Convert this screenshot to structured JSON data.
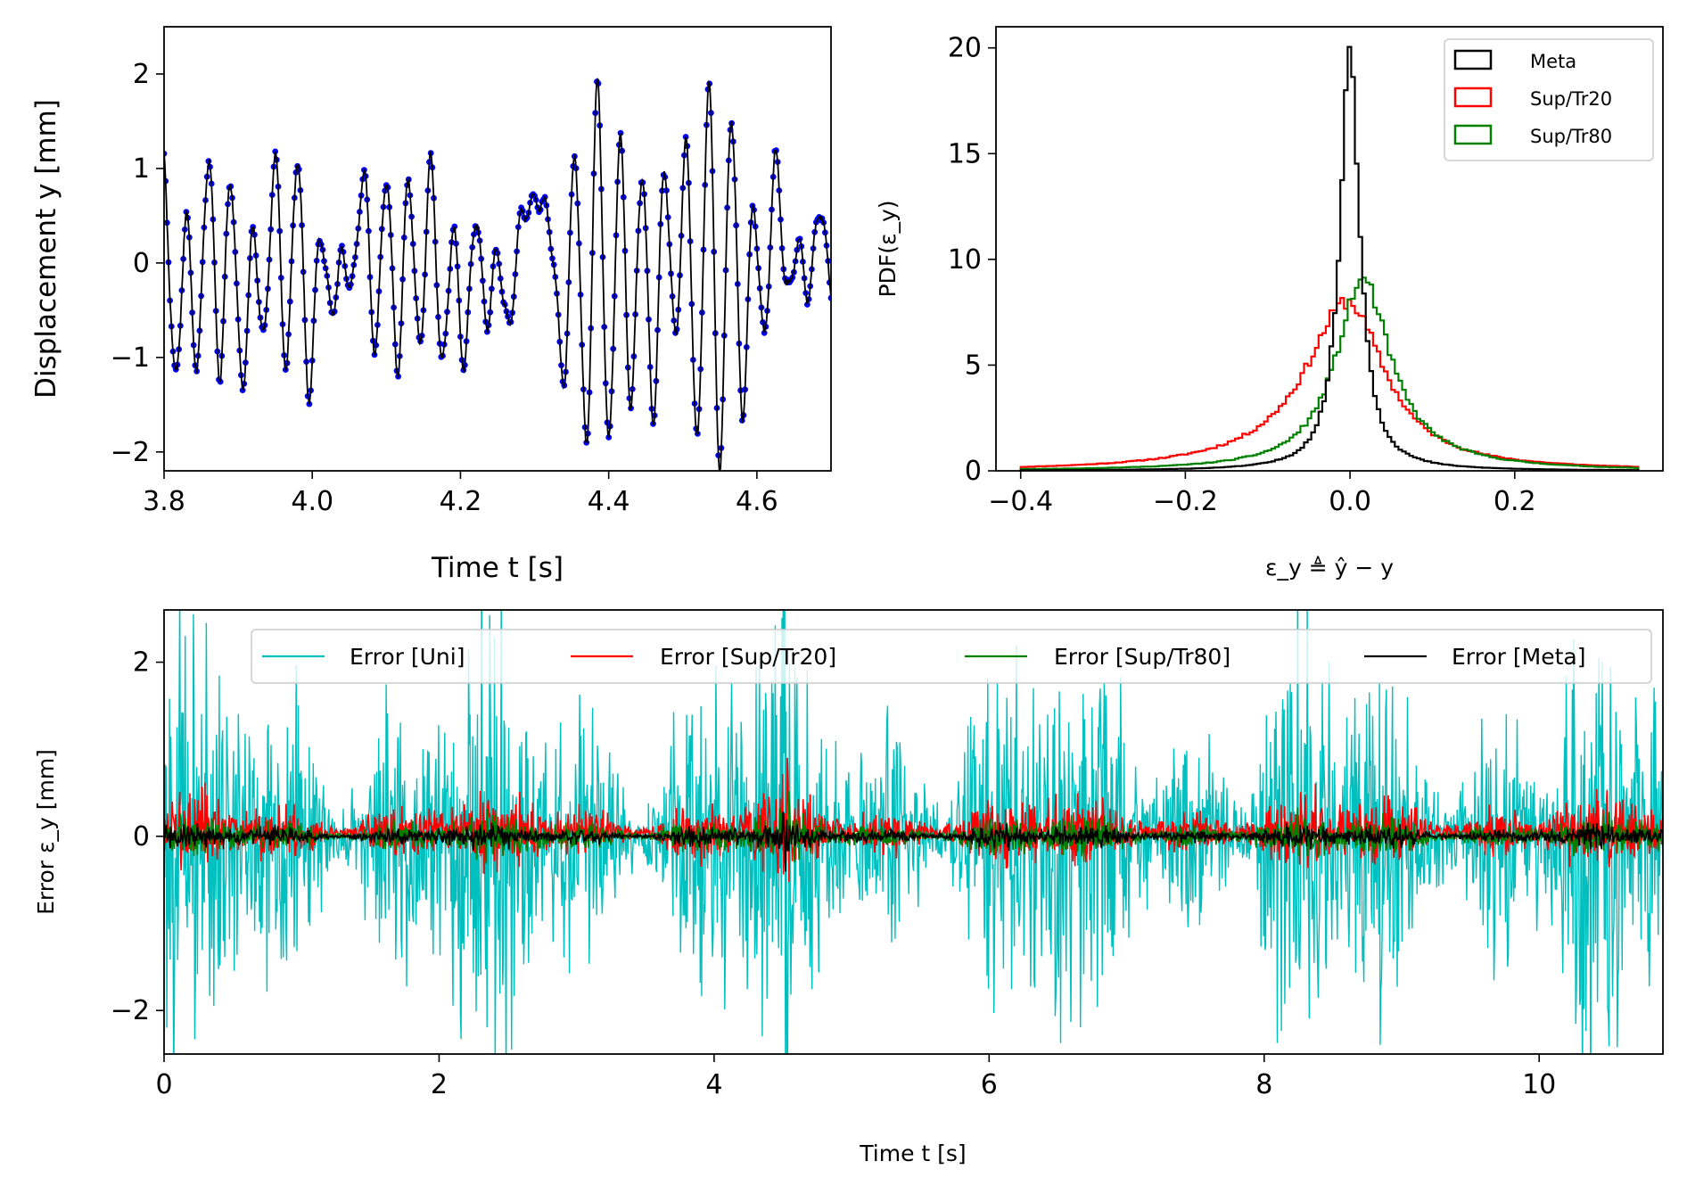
{
  "chart_data": [
    {
      "id": "displacement",
      "type": "line",
      "xlabel": "Time t [s]",
      "ylabel": "Displacement y [mm]",
      "xlim": [
        3.8,
        4.7
      ],
      "ylim": [
        -2.2,
        2.5
      ],
      "xticks": [
        "3.8",
        "4.0",
        "4.2",
        "4.4",
        "4.6"
      ],
      "xtick_values": [
        3.8,
        4.0,
        4.2,
        4.4,
        4.6
      ],
      "yticks": [
        "−2",
        "−1",
        "0",
        "1",
        "2"
      ],
      "ytick_values": [
        -2,
        -1,
        0,
        1,
        2
      ],
      "grid": false,
      "series": [
        {
          "role": "measured samples",
          "style": "markers",
          "color": "#0000ff"
        },
        {
          "role": "prediction",
          "style": "line",
          "color": "#000000"
        }
      ],
      "x": [
        3.8,
        3.815,
        3.83,
        3.845,
        3.86,
        3.875,
        3.89,
        3.905,
        3.92,
        3.935,
        3.95,
        3.965,
        3.98,
        3.995,
        4.01,
        4.025,
        4.04,
        4.055,
        4.07,
        4.085,
        4.1,
        4.115,
        4.13,
        4.145,
        4.16,
        4.175,
        4.19,
        4.205,
        4.22,
        4.235,
        4.25,
        4.265,
        4.28,
        4.295,
        4.31,
        4.325,
        4.34,
        4.355,
        4.37,
        4.385,
        4.4,
        4.415,
        4.43,
        4.445,
        4.46,
        4.475,
        4.49,
        4.505,
        4.52,
        4.535,
        4.55,
        4.565,
        4.58,
        4.595,
        4.61,
        4.625,
        4.64,
        4.655,
        4.67,
        4.685,
        4.7
      ],
      "values": [
        1.1,
        -1.25,
        0.45,
        -1.1,
        1.15,
        -1.15,
        0.9,
        -1.3,
        0.3,
        -0.8,
        1.1,
        -1.1,
        1.15,
        -1.35,
        0.3,
        -0.5,
        0.05,
        -0.2,
        0.95,
        -0.9,
        0.95,
        -1.1,
        0.9,
        -0.9,
        1.05,
        -1.1,
        0.35,
        -1.05,
        0.5,
        -0.6,
        0.1,
        -0.7,
        0.4,
        0.6,
        0.65,
        0.1,
        -1.2,
        1.15,
        -1.95,
        1.85,
        -1.95,
        1.3,
        -1.5,
        1.0,
        -1.6,
        1.0,
        -0.8,
        1.2,
        -1.9,
        1.9,
        -2.15,
        1.6,
        -1.55,
        0.6,
        -0.8,
        1.1,
        -0.3,
        0.2,
        -0.3,
        0.6,
        -0.3
      ]
    },
    {
      "id": "pdf",
      "type": "histogram",
      "xlabel": "ε_y ≜ ŷ − y",
      "ylabel": "PDF(ε_y)",
      "xlim": [
        -0.43,
        0.38
      ],
      "ylim": [
        0,
        21
      ],
      "xticks": [
        "−0.4",
        "−0.2",
        "0.0",
        "0.2"
      ],
      "xtick_values": [
        -0.4,
        -0.2,
        0.0,
        0.2
      ],
      "yticks": [
        "0",
        "5",
        "10",
        "15",
        "20"
      ],
      "ytick_values": [
        0,
        5,
        10,
        15,
        20
      ],
      "grid": false,
      "legend_position": "top-right",
      "series": [
        {
          "name": "Meta",
          "color": "#000000",
          "center": 0.0,
          "peak": 20.1,
          "scale": 0.018
        },
        {
          "name": "Sup/Tr20",
          "color": "#ff0000",
          "center": -0.003,
          "peak": 8.0,
          "scale": 0.06
        },
        {
          "name": "Sup/Tr80",
          "color": "#008000",
          "center": 0.015,
          "peak": 9.0,
          "scale": 0.045
        }
      ]
    },
    {
      "id": "error",
      "type": "line",
      "xlabel": "Time t [s]",
      "ylabel": "Error ε_y [mm]",
      "xlim": [
        0,
        10.9
      ],
      "ylim": [
        -2.5,
        2.6
      ],
      "xticks": [
        "0",
        "2",
        "4",
        "6",
        "8",
        "10"
      ],
      "xtick_values": [
        0,
        2,
        4,
        6,
        8,
        10
      ],
      "yticks": [
        "−2",
        "0",
        "2"
      ],
      "ytick_values": [
        -2,
        0,
        2
      ],
      "grid": false,
      "legend_position": "top",
      "series": [
        {
          "name": "Error [Uni]",
          "color": "#00bfbf",
          "amplitude": 1.2
        },
        {
          "name": "Error [Sup/Tr20]",
          "color": "#ff0000",
          "amplitude": 0.22
        },
        {
          "name": "Error [Sup/Tr80]",
          "color": "#008000",
          "amplitude": 0.12
        },
        {
          "name": "Error [Meta]",
          "color": "#000000",
          "amplitude": 0.07
        }
      ]
    }
  ]
}
